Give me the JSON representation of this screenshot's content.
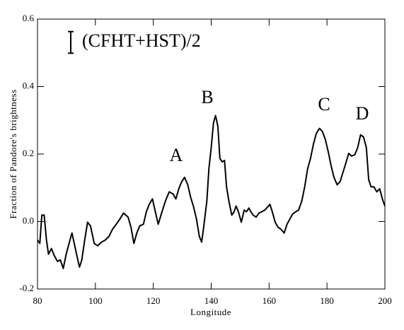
{
  "chart_data": {
    "type": "line",
    "xlabel": "Longitude",
    "ylabel": "Fraction of Pandore's brightness",
    "xlim": [
      80,
      200
    ],
    "xticks": [
      80,
      100,
      120,
      140,
      160,
      180,
      200
    ],
    "ylim": [
      -0.2,
      0.6
    ],
    "yticks": [
      -0.2,
      {
        "value": 0,
        "label": "0.0"
      },
      0.2,
      0.4,
      0.6
    ],
    "annotations": [
      "A",
      "B",
      "C",
      "D"
    ],
    "x": [
      80.0,
      80.8,
      81.5,
      82.3,
      83.1,
      83.8,
      84.8,
      85.8,
      86.9,
      87.9,
      88.9,
      89.9,
      90.9,
      91.9,
      92.7,
      93.5,
      94.5,
      95.3,
      96.3,
      97.3,
      98.3,
      99.6,
      100.8,
      102.1,
      103.4,
      104.7,
      105.9,
      107.2,
      108.5,
      109.7,
      111.3,
      112.3,
      113.3,
      114.3,
      115.3,
      116.6,
      117.6,
      118.6,
      119.7,
      120.7,
      121.7,
      123.0,
      124.2,
      125.5,
      126.8,
      127.8,
      128.8,
      129.8,
      130.8,
      131.9,
      132.9,
      133.9,
      134.9,
      135.9,
      136.7,
      137.4,
      138.5,
      139.2,
      140.0,
      140.8,
      141.5,
      142.3,
      143.0,
      143.8,
      144.6,
      145.3,
      146.1,
      147.1,
      147.9,
      148.6,
      149.4,
      150.4,
      151.4,
      152.2,
      153.0,
      153.7,
      154.5,
      155.5,
      156.5,
      157.5,
      158.5,
      159.6,
      160.3,
      161.1,
      162.1,
      163.1,
      164.1,
      165.2,
      166.2,
      167.2,
      168.2,
      169.2,
      170.2,
      171.3,
      172.3,
      173.3,
      174.3,
      175.3,
      176.3,
      177.4,
      178.4,
      179.4,
      180.4,
      181.4,
      182.4,
      183.5,
      184.5,
      185.5,
      186.5,
      187.5,
      188.5,
      189.6,
      190.6,
      191.6,
      192.6,
      193.6,
      194.4,
      195.2,
      196.2,
      197.2,
      198.2,
      199.2,
      200.0
    ],
    "series": [
      {
        "name": "(CFHT+HST)/2",
        "color": "#000000",
        "error": 0.032,
        "values": [
          -0.055,
          -0.065,
          0.019,
          0.019,
          -0.055,
          -0.097,
          -0.08,
          -0.101,
          -0.118,
          -0.114,
          -0.139,
          -0.097,
          -0.065,
          -0.034,
          -0.065,
          -0.097,
          -0.135,
          -0.114,
          -0.055,
          -0.002,
          -0.013,
          -0.065,
          -0.072,
          -0.061,
          -0.055,
          -0.044,
          -0.023,
          -0.008,
          0.008,
          0.025,
          0.013,
          -0.017,
          -0.065,
          -0.034,
          -0.013,
          -0.008,
          0.029,
          0.051,
          0.067,
          0.029,
          -0.008,
          0.029,
          0.061,
          0.088,
          0.082,
          0.067,
          0.097,
          0.118,
          0.131,
          0.109,
          0.072,
          0.044,
          0.008,
          -0.044,
          -0.061,
          -0.017,
          0.061,
          0.156,
          0.219,
          0.293,
          0.314,
          0.282,
          0.187,
          0.177,
          0.181,
          0.103,
          0.061,
          0.019,
          0.029,
          0.046,
          0.029,
          -0.002,
          0.034,
          0.029,
          0.04,
          0.029,
          0.019,
          0.013,
          0.025,
          0.029,
          0.034,
          0.044,
          0.051,
          0.029,
          -0.002,
          -0.017,
          -0.023,
          -0.034,
          -0.008,
          0.008,
          0.023,
          0.029,
          0.034,
          0.061,
          0.103,
          0.156,
          0.187,
          0.229,
          0.261,
          0.276,
          0.267,
          0.244,
          0.208,
          0.166,
          0.131,
          0.109,
          0.118,
          0.145,
          0.173,
          0.202,
          0.194,
          0.198,
          0.219,
          0.257,
          0.251,
          0.219,
          0.124,
          0.103,
          0.103,
          0.088,
          0.097,
          0.065,
          0.046
        ]
      }
    ]
  }
}
